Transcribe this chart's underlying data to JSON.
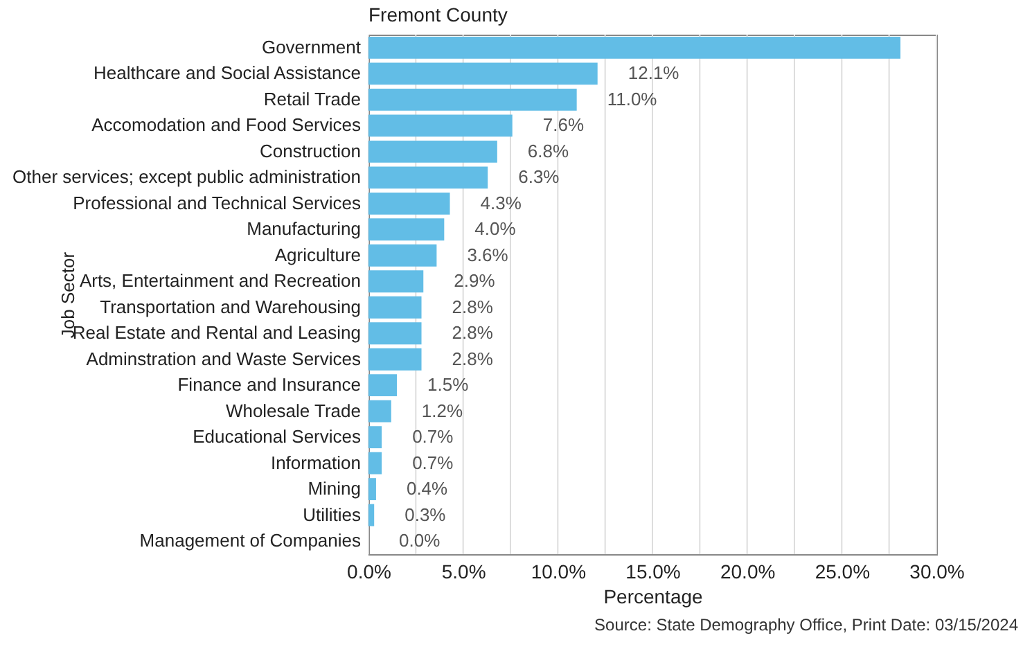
{
  "chart_data": {
    "type": "bar",
    "orientation": "horizontal",
    "title": "Fremont County",
    "xlabel": "Percentage",
    "ylabel": "Job Sector",
    "categories": [
      "Government",
      "Healthcare and Social Assistance",
      "Retail Trade",
      "Accomodation and Food Services",
      "Construction",
      "Other services; except public administration",
      "Professional and Technical Services",
      "Manufacturing",
      "Agriculture",
      "Arts, Entertainment and Recreation",
      "Transportation and Warehousing",
      "Real Estate and Rental and Leasing",
      "Adminstration and Waste Services",
      "Finance and Insurance",
      "Wholesale Trade",
      "Educational Services",
      "Information",
      "Mining",
      "Utilities",
      "Management of Companies"
    ],
    "values": [
      28.1,
      12.1,
      11.0,
      7.6,
      6.8,
      6.3,
      4.3,
      4.0,
      3.6,
      2.9,
      2.8,
      2.8,
      2.8,
      1.5,
      1.2,
      0.7,
      0.7,
      0.4,
      0.3,
      0.0
    ],
    "value_labels": [
      null,
      "12.1%",
      "11.0%",
      "7.6%",
      "6.8%",
      "6.3%",
      "4.3%",
      "4.0%",
      "3.6%",
      "2.9%",
      "2.8%",
      "2.8%",
      "2.8%",
      "1.5%",
      "1.2%",
      "0.7%",
      "0.7%",
      "0.4%",
      "0.3%",
      "0.0%"
    ],
    "color": "#62bde6",
    "xlim": [
      0,
      30
    ],
    "xticks": [
      {
        "value": 0,
        "label": "0.0%"
      },
      {
        "value": 2.5,
        "label": null
      },
      {
        "value": 5,
        "label": "5.0%"
      },
      {
        "value": 7.5,
        "label": null
      },
      {
        "value": 10,
        "label": "10.0%"
      },
      {
        "value": 12.5,
        "label": null
      },
      {
        "value": 15,
        "label": "15.0%"
      },
      {
        "value": 17.5,
        "label": null
      },
      {
        "value": 20,
        "label": "20.0%"
      },
      {
        "value": 22.5,
        "label": null
      },
      {
        "value": 25,
        "label": "25.0%"
      },
      {
        "value": 27.5,
        "label": null
      },
      {
        "value": 30,
        "label": "30.0%"
      }
    ],
    "grid": "x",
    "annotations": [
      "Source: State Demography Office, Print Date: 03/15/2024"
    ]
  }
}
